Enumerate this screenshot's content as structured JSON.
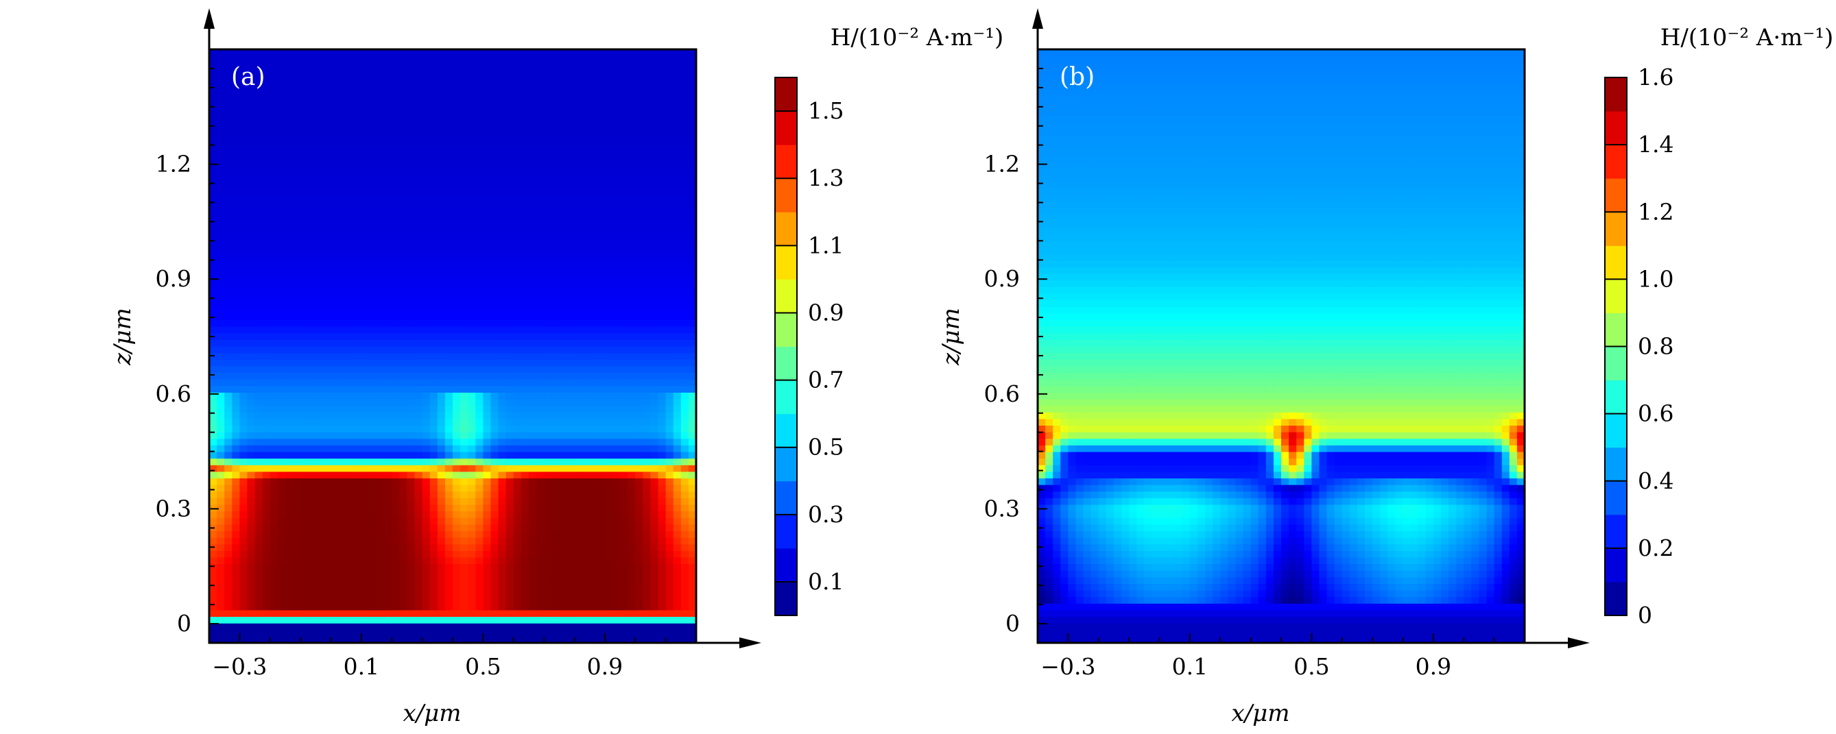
{
  "chart_data": [
    {
      "type": "heatmap",
      "panel_label": "(a)",
      "xlabel": "x/μm",
      "ylabel": "z/μm",
      "x_ticks": [
        "−0.3",
        "0.1",
        "0.5",
        "0.9"
      ],
      "x_tick_values": [
        -0.3,
        0.1,
        0.5,
        0.9
      ],
      "y_ticks": [
        "0",
        "0.3",
        "0.6",
        "0.9",
        "1.2"
      ],
      "y_tick_values": [
        0,
        0.3,
        0.6,
        0.9,
        1.2
      ],
      "xlim": [
        -0.4,
        1.2
      ],
      "ylim": [
        -0.05,
        1.5
      ],
      "colorbar": {
        "title": "H/(10⁻² A·m⁻¹)",
        "range": [
          0,
          1.6
        ],
        "ticks": [
          "0.1",
          "0.3",
          "0.5",
          "0.7",
          "0.9",
          "1.1",
          "1.3",
          "1.5"
        ],
        "tick_values": [
          0.1,
          0.3,
          0.5,
          0.7,
          0.9,
          1.1,
          1.3,
          1.5
        ]
      },
      "field_description": {
        "z_levels": [
          -0.05,
          0.0,
          0.02,
          0.04,
          0.38,
          0.4,
          0.44,
          0.5,
          0.6,
          0.7,
          0.8,
          1.0,
          1.3,
          1.5
        ],
        "values": [
          0.05,
          0.05,
          1.2,
          1.6,
          1.6,
          1.2,
          0.25,
          0.45,
          0.4,
          0.3,
          0.2,
          0.15,
          0.12,
          0.12
        ],
        "dip_centers_x": [
          -0.4,
          0.44,
          1.2
        ],
        "dip_value": 1.15,
        "hotspot_value": 0.55
      }
    },
    {
      "type": "heatmap",
      "panel_label": "(b)",
      "xlabel": "x/μm",
      "ylabel": "z/μm",
      "x_ticks": [
        "−0.3",
        "0.1",
        "0.5",
        "0.9"
      ],
      "x_tick_values": [
        -0.3,
        0.1,
        0.5,
        0.9
      ],
      "y_ticks": [
        "0",
        "0.3",
        "0.6",
        "0.9",
        "1.2"
      ],
      "y_tick_values": [
        0,
        0.3,
        0.6,
        0.9,
        1.2
      ],
      "xlim": [
        -0.4,
        1.2
      ],
      "ylim": [
        -0.05,
        1.5
      ],
      "colorbar": {
        "title": "H/(10⁻² A·m⁻¹)",
        "range": [
          0,
          1.6
        ],
        "ticks": [
          "0",
          "0.2",
          "0.4",
          "0.6",
          "0.8",
          "1.0",
          "1.2",
          "1.4",
          "1.6"
        ],
        "tick_values": [
          0,
          0.2,
          0.4,
          0.6,
          0.8,
          1.0,
          1.2,
          1.4,
          1.6
        ]
      },
      "field_description": {
        "z_levels": [
          -0.05,
          0.0,
          0.05,
          0.15,
          0.3,
          0.38,
          0.44,
          0.5,
          0.6,
          0.7,
          0.8,
          0.95,
          1.15,
          1.5
        ],
        "values": [
          0.1,
          0.1,
          0.2,
          0.3,
          0.45,
          0.25,
          0.2,
          0.95,
          0.8,
          0.7,
          0.6,
          0.5,
          0.45,
          0.4
        ],
        "dip_centers_x": [
          -0.4,
          0.44,
          1.2
        ],
        "hotspot_value": 1.6
      }
    }
  ]
}
